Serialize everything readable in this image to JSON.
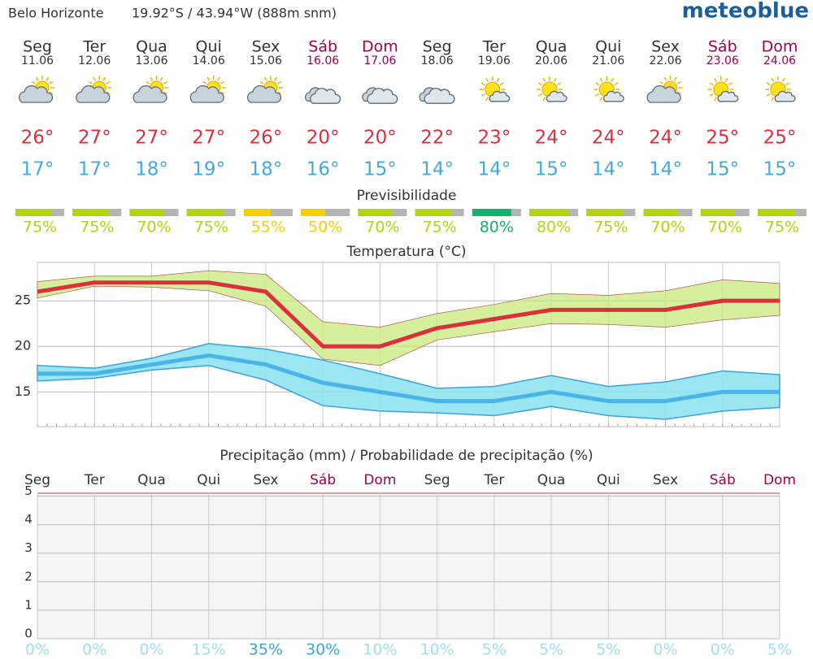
{
  "header": {
    "location": "Belo Horizonte",
    "coordinates": "19.92°S / 43.94°W (888m snm)",
    "brand": "meteoblue"
  },
  "days": [
    {
      "weekday": "Seg",
      "date": "11.06",
      "max": "26°",
      "min": "17°"
    },
    {
      "weekday": "Ter",
      "date": "12.06",
      "max": "27°",
      "min": "17°"
    },
    {
      "weekday": "Qua",
      "date": "13.06",
      "max": "27°",
      "min": "18°"
    },
    {
      "weekday": "Qui",
      "date": "14.06",
      "max": "27°",
      "min": "19°"
    },
    {
      "weekday": "Sex",
      "date": "15.06",
      "max": "26°",
      "min": "18°"
    },
    {
      "weekday": "Sáb",
      "date": "16.06",
      "max": "20°",
      "min": "16°"
    },
    {
      "weekday": "Dom",
      "date": "17.06",
      "max": "20°",
      "min": "15°"
    },
    {
      "weekday": "Seg",
      "date": "18.06",
      "max": "22°",
      "min": "14°"
    },
    {
      "weekday": "Ter",
      "date": "19.06",
      "max": "23°",
      "min": "14°"
    },
    {
      "weekday": "Qua",
      "date": "20.06",
      "max": "24°",
      "min": "15°"
    },
    {
      "weekday": "Qui",
      "date": "21.06",
      "max": "24°",
      "min": "14°"
    },
    {
      "weekday": "Sex",
      "date": "22.06",
      "max": "24°",
      "min": "14°"
    },
    {
      "weekday": "Sáb",
      "date": "23.06",
      "max": "25°",
      "min": "15°"
    },
    {
      "weekday": "Dom",
      "date": "24.06",
      "max": "25°",
      "min": "15°"
    }
  ],
  "predictability": {
    "title": "Previsibilidade",
    "values": [
      75,
      75,
      70,
      75,
      55,
      50,
      70,
      75,
      80,
      80,
      75,
      70,
      70,
      75
    ],
    "value_labels": [
      "75%",
      "75%",
      "70%",
      "75%",
      "55%",
      "50%",
      "70%",
      "75%",
      "80%",
      "80%",
      "75%",
      "70%",
      "70%",
      "75%"
    ],
    "colors": [
      "#b5d30f",
      "#b5d30f",
      "#b5d30f",
      "#b5d30f",
      "#f5d000",
      "#f5d000",
      "#b5d30f",
      "#b5d30f",
      "#12b36b",
      "#b5d30f",
      "#b5d30f",
      "#b5d30f",
      "#b5d30f",
      "#b5d30f"
    ]
  },
  "chart_data": [
    {
      "type": "line",
      "title": "Temperatura (°C)",
      "ylim": [
        11.2,
        29.2
      ],
      "yticks": [
        15,
        20,
        25
      ],
      "grid": true,
      "bands": [
        {
          "color": "#8fe3ef",
          "upper": [
            17.9,
            17.6,
            18.7,
            20.3,
            19.7,
            18.5,
            17.0,
            15.4,
            15.6,
            16.8,
            15.6,
            16.1,
            17.3,
            16.9
          ],
          "lower": [
            16.2,
            16.5,
            17.4,
            17.9,
            16.3,
            13.5,
            12.9,
            12.7,
            12.4,
            13.4,
            12.4,
            12.0,
            12.9,
            13.3
          ]
        },
        {
          "color": "#c8ea7c",
          "upper": [
            27.1,
            27.7,
            27.7,
            28.3,
            27.9,
            22.7,
            22.1,
            23.6,
            24.6,
            25.8,
            25.6,
            26.1,
            27.3,
            26.9
          ],
          "lower": [
            25.3,
            26.6,
            26.5,
            26.1,
            24.4,
            18.6,
            17.9,
            20.7,
            21.6,
            22.5,
            22.4,
            22.1,
            22.9,
            23.4
          ]
        }
      ],
      "series": [
        {
          "color": "#4ab4e8",
          "values": [
            17,
            17,
            18,
            19,
            18,
            16,
            15,
            14,
            14,
            15,
            14,
            14,
            15,
            15
          ]
        },
        {
          "color": "#d9303e",
          "values": [
            26,
            27,
            27,
            27,
            26,
            20,
            20,
            22,
            23,
            24,
            24,
            24,
            25,
            25
          ]
        }
      ]
    },
    {
      "type": "bar",
      "title": "Precipitação (mm) / Probabilidade de precipitação (%)",
      "categories": [
        "Seg",
        "Ter",
        "Qua",
        "Qui",
        "Sex",
        "Sáb",
        "Dom",
        "Seg",
        "Ter",
        "Qua",
        "Qui",
        "Sex",
        "Sáb",
        "Dom"
      ],
      "ylim": [
        0,
        5.1
      ],
      "yticks": [
        0,
        1,
        2,
        3,
        4,
        5
      ],
      "grid": true,
      "probability": {
        "values": [
          0,
          0,
          0,
          15,
          35,
          30,
          10,
          10,
          5,
          5,
          5,
          0,
          0,
          5
        ],
        "value_labels": [
          "0%",
          "0%",
          "0%",
          "15%",
          "35%",
          "30%",
          "10%",
          "10%",
          "5%",
          "5%",
          "5%",
          "0%",
          "0%",
          "5%"
        ]
      }
    }
  ]
}
